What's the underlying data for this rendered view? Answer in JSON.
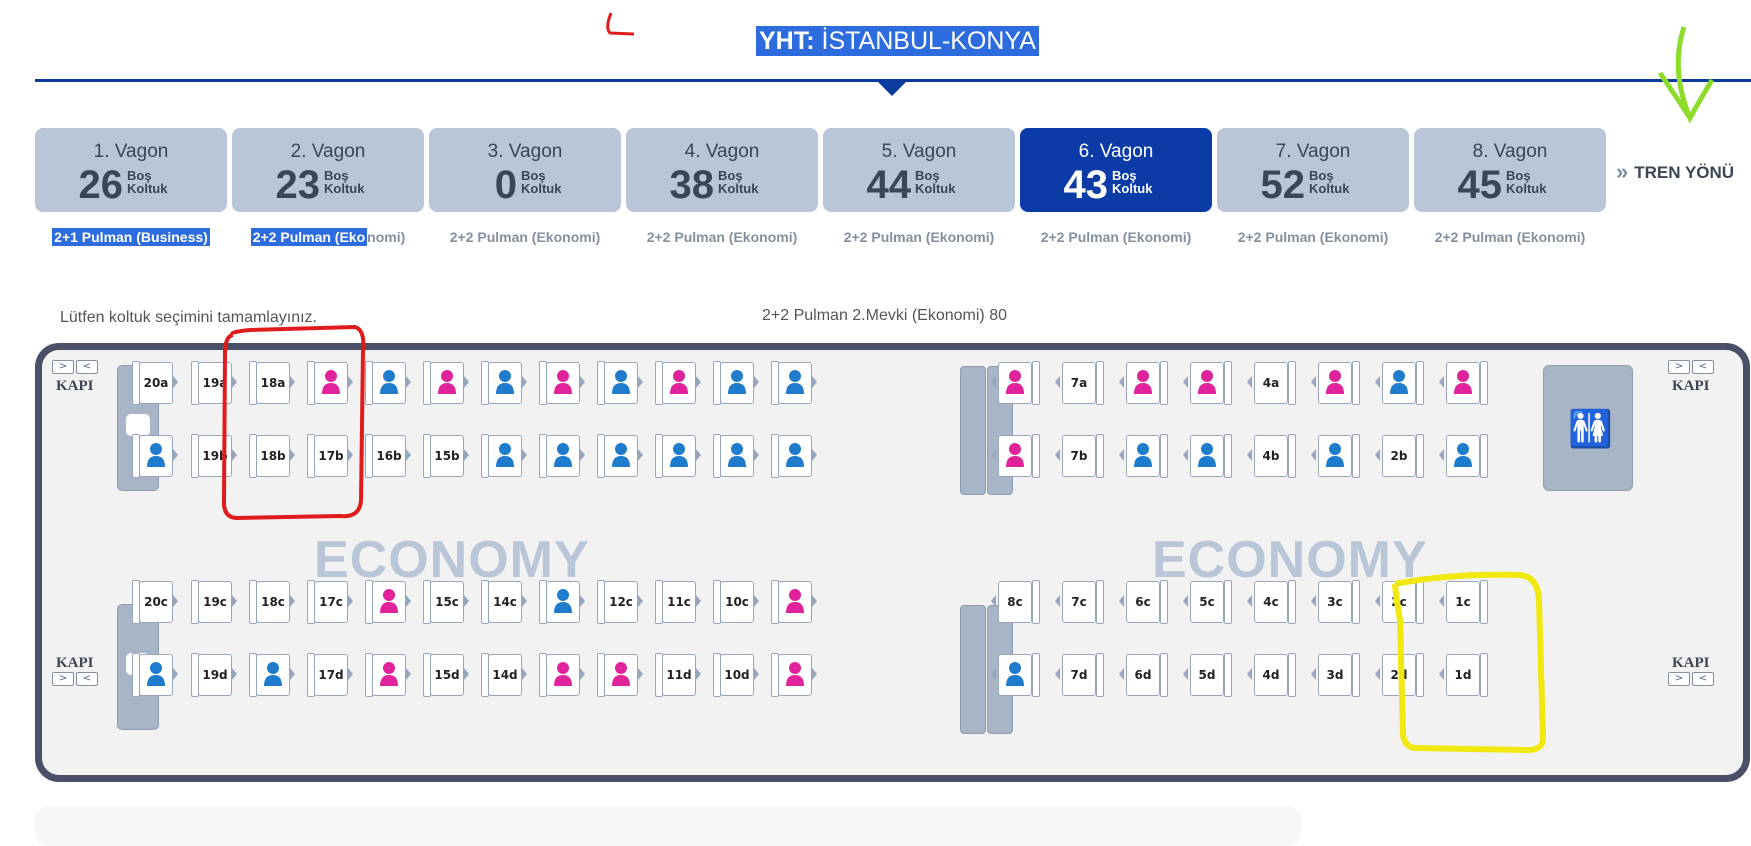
{
  "header": {
    "prefix": "YHT:",
    "route": "İSTANBUL-KONYA"
  },
  "wagons": [
    {
      "name": "1. Vagon",
      "count": "26",
      "lbl1": "Boş",
      "lbl2": "Koltuk",
      "type": "2+1 Pulman (Business)"
    },
    {
      "name": "2. Vagon",
      "count": "23",
      "lbl1": "Boş",
      "lbl2": "Koltuk",
      "type": "2+2 Pulman (Ekonomi)"
    },
    {
      "name": "3. Vagon",
      "count": "0",
      "lbl1": "Boş",
      "lbl2": "Koltuk",
      "type": "2+2 Pulman (Ekonomi)"
    },
    {
      "name": "4. Vagon",
      "count": "38",
      "lbl1": "Boş",
      "lbl2": "Koltuk",
      "type": "2+2 Pulman (Ekonomi)"
    },
    {
      "name": "5. Vagon",
      "count": "44",
      "lbl1": "Boş",
      "lbl2": "Koltuk",
      "type": "2+2 Pulman (Ekonomi)"
    },
    {
      "name": "6. Vagon",
      "count": "43",
      "lbl1": "Boş",
      "lbl2": "Koltuk",
      "type": "2+2 Pulman (Ekonomi)",
      "active": true
    },
    {
      "name": "7. Vagon",
      "count": "52",
      "lbl1": "Boş",
      "lbl2": "Koltuk",
      "type": "2+2 Pulman (Ekonomi)"
    },
    {
      "name": "8. Vagon",
      "count": "45",
      "lbl1": "Boş",
      "lbl2": "Koltuk",
      "type": "2+2 Pulman (Ekonomi)"
    }
  ],
  "wagon2_type_parts": [
    "2+2 Pulman (Eko",
    "nomi)"
  ],
  "train_direction": "TREN YÖNÜ",
  "instruction": "Lütfen koltuk seçimini tamamlayınız.",
  "coach_title": "2+2 Pulman 2.Mevki (Ekonomi) 80",
  "door_label": "KAPI",
  "door_arrows": [
    ">",
    "<"
  ],
  "economy_label": "ECONOMY",
  "colors": {
    "active_wagon": "#0a3ba6",
    "wagon": "#b8c6d8",
    "male": "#1f7ccc",
    "female": "#e0239b",
    "highlight": "#2d6cdf",
    "annotation_red": "#e01b1b",
    "annotation_yellow": "#f0e80f",
    "annotation_green": "#8ddc2a"
  },
  "seat_rows": {
    "a": [
      "20a",
      "19a",
      "18a",
      "F",
      "M",
      "F",
      "M",
      "F",
      "M",
      "F",
      "M",
      "M",
      "|",
      "F",
      "7a",
      "F",
      "F",
      "4a",
      "F",
      "M",
      "F"
    ],
    "b": [
      "M",
      "19b",
      "18b",
      "17b",
      "16b",
      "15b",
      "M",
      "M",
      "M",
      "M",
      "M",
      "M",
      "|",
      "F",
      "7b",
      "M",
      "M",
      "4b",
      "M",
      "2b",
      "M"
    ],
    "c": [
      "20c",
      "19c",
      "18c",
      "17c",
      "F",
      "15c",
      "14c",
      "M",
      "12c",
      "11c",
      "10c",
      "F",
      "|",
      "8c",
      "7c",
      "6c",
      "5c",
      "4c",
      "3c",
      "2c",
      "1c"
    ],
    "d": [
      "M",
      "19d",
      "M",
      "17d",
      "F",
      "15d",
      "14d",
      "F",
      "F",
      "11d",
      "10d",
      "F",
      "|",
      "M",
      "7d",
      "6d",
      "5d",
      "4d",
      "3d",
      "2d",
      "1d"
    ]
  }
}
